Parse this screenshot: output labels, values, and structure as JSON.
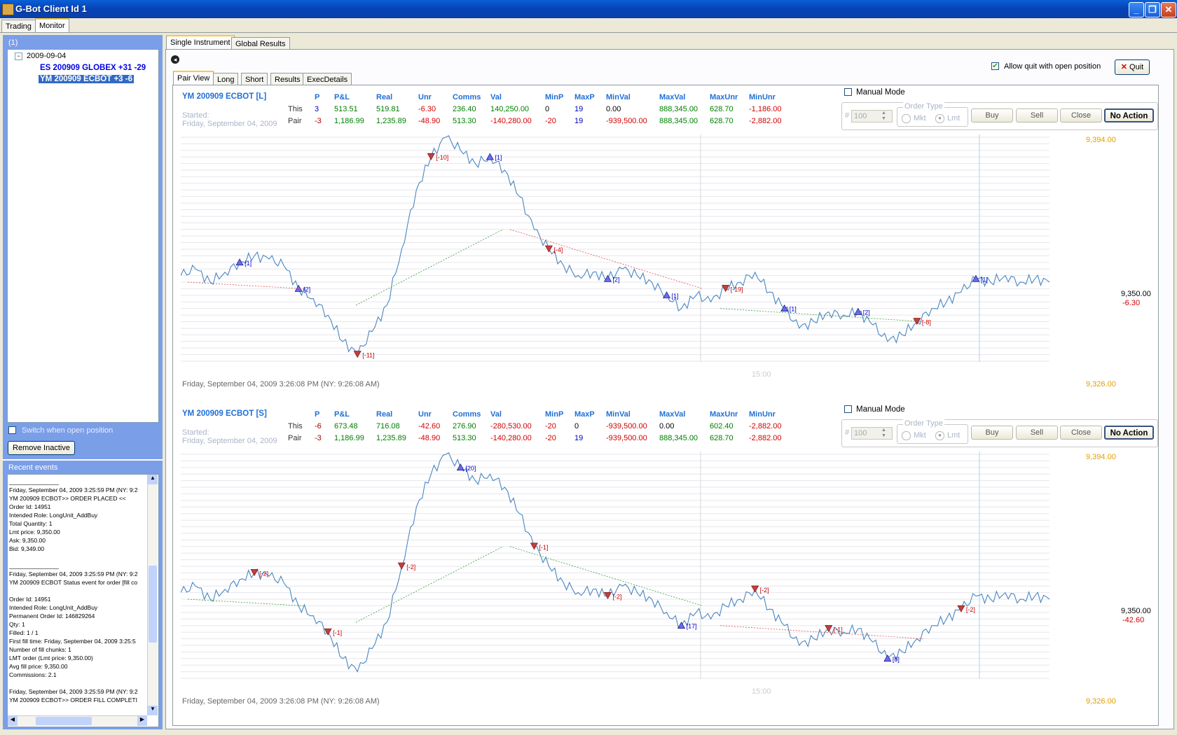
{
  "window": {
    "title": "G-Bot Client Id 1"
  },
  "main_tabs": [
    "Trading",
    "Monitor"
  ],
  "left": {
    "header": "(1)",
    "tree": {
      "date": "2009-09-04",
      "items": [
        "ES 200909 GLOBEX +31 -29",
        "YM 200909 ECBOT +3 -6"
      ]
    },
    "switch_label": "Switch when open position",
    "remove_inactive": "Remove Inactive",
    "events_header": "Recent events",
    "events_text": "_______________\nFriday, September 04, 2009 3:25:59 PM (NY: 9:2\nYM 200909 ECBOT>> ORDER PLACED <<\nOrder Id: 14951\nIntended Role: LongUnit_AddBuy\nTotal Quantity: 1\nLmt price: 9,350.00\nAsk: 9,350.00\nBid: 9,349.00\n\n_______________\nFriday, September 04, 2009 3:25:59 PM (NY: 9:2\nYM 200909 ECBOT Status event for order [fill co\n\nOrder Id: 14951\nIntended Role: LongUnit_AddBuy\nPermanent Order Id: 146829264\nQty: 1\nFilled: 1 / 1\nFirst fill time: Friday, September 04, 2009 3:25:5\nNumber of fill chunks: 1\nLMT order (Lmt price: 9,350.00)\nAvg fill price: 9,350.00\nCommissions: 2.1\n\nFriday, September 04, 2009 3:25:59 PM (NY: 9:2\nYM 200909 ECBOT>> ORDER FILL COMPLETI"
  },
  "right": {
    "tabs": [
      "Single Instrument",
      "Global Results"
    ],
    "subtabs": [
      "Pair View",
      "Long",
      "Short",
      "Results",
      "ExecDetails"
    ],
    "allow_quit": "Allow quit with open position",
    "quit": "Quit",
    "columns": [
      "P",
      "P&L",
      "Real",
      "Unr",
      "Comms",
      "Val",
      "MinP",
      "MaxP",
      "MinVal",
      "MaxVal",
      "MaxUnr",
      "MinUnr"
    ],
    "panels": [
      {
        "title": "YM 200909 ECBOT [L]",
        "started": "Started:",
        "started_date": "Friday, September 04, 2009",
        "rows": [
          {
            "label": "This",
            "values": [
              "3",
              "513.51",
              "519.81",
              "-6.30",
              "236.40",
              "140,250.00",
              "0",
              "19",
              "0.00",
              "888,345.00",
              "628.70",
              "-1,186.00"
            ]
          },
          {
            "label": "Pair",
            "values": [
              "-3",
              "1,186.99",
              "1,235.89",
              "-48.90",
              "513.30",
              "-140,280.00",
              "-20",
              "19",
              "-939,500.00",
              "888,345.00",
              "628.70",
              "-2,882.00"
            ]
          }
        ],
        "manual_mode": "Manual Mode",
        "qty_label": "#",
        "qty": "100",
        "order_type": "Order Type",
        "mkt": "Mkt",
        "lmt": "Lmt",
        "buttons": [
          "Buy",
          "Sell",
          "Close",
          "No Action"
        ],
        "price_top": "9,394.00",
        "price_bottom": "9,326.00",
        "last_price": "9,350.00",
        "last_unr": "-6.30",
        "time_marker": "15:00",
        "footer": "Friday, September 04, 2009 3:26:08 PM (NY: 9:26:08 AM)"
      },
      {
        "title": "YM 200909 ECBOT [S]",
        "started": "Started:",
        "started_date": "Friday, September 04, 2009",
        "rows": [
          {
            "label": "This",
            "values": [
              "-6",
              "673.48",
              "716.08",
              "-42.60",
              "276.90",
              "-280,530.00",
              "-20",
              "0",
              "-939,500.00",
              "0.00",
              "602.40",
              "-2,882.00"
            ]
          },
          {
            "label": "Pair",
            "values": [
              "-3",
              "1,186.99",
              "1,235.89",
              "-48.90",
              "513.30",
              "-140,280.00",
              "-20",
              "19",
              "-939,500.00",
              "888,345.00",
              "628.70",
              "-2,882.00"
            ]
          }
        ],
        "manual_mode": "Manual Mode",
        "qty_label": "#",
        "qty": "100",
        "order_type": "Order Type",
        "mkt": "Mkt",
        "lmt": "Lmt",
        "buttons": [
          "Buy",
          "Sell",
          "Close",
          "No Action"
        ],
        "price_top": "9,394.00",
        "price_bottom": "9,326.00",
        "last_price": "9,350.00",
        "last_unr": "-42.60",
        "time_marker": "15:00",
        "footer": "Friday, September 04, 2009 3:26:08 PM (NY: 9:26:08 AM)"
      }
    ]
  },
  "chart_data": [
    {
      "type": "line",
      "ylim": [
        9326,
        9394
      ],
      "series": [
        {
          "values": [
            9352,
            9354,
            9350,
            9353,
            9356,
            9358,
            9357,
            9355,
            9348,
            9345,
            9340,
            9332,
            9328,
            9335,
            9343,
            9360,
            9378,
            9388,
            9394,
            9390,
            9386,
            9388,
            9384,
            9376,
            9366,
            9360,
            9355,
            9352,
            9353,
            9351,
            9354,
            9352,
            9350,
            9346,
            9342,
            9346,
            9344,
            9348,
            9350,
            9353,
            9347,
            9342,
            9336,
            9338,
            9341,
            9340,
            9341,
            9337,
            9332,
            9334,
            9338,
            9342,
            9344,
            9347,
            9351,
            9350,
            9352,
            9350,
            9351,
            9350
          ]
        }
      ],
      "trade_labels": [
        "[1]",
        "[2]",
        "[-11]",
        "[-10]",
        "[1]",
        "[-4]",
        "[2]",
        "[1]",
        "[-19]",
        "[1]",
        "[2]",
        "[-8]",
        "[1]"
      ]
    },
    {
      "type": "line",
      "ylim": [
        9326,
        9394
      ],
      "series": [
        {
          "values": [
            9352,
            9354,
            9350,
            9353,
            9356,
            9358,
            9357,
            9355,
            9348,
            9345,
            9340,
            9332,
            9328,
            9335,
            9343,
            9360,
            9378,
            9388,
            9394,
            9390,
            9386,
            9388,
            9384,
            9376,
            9366,
            9360,
            9355,
            9352,
            9353,
            9351,
            9354,
            9352,
            9350,
            9346,
            9342,
            9346,
            9344,
            9348,
            9350,
            9353,
            9347,
            9342,
            9336,
            9338,
            9341,
            9340,
            9341,
            9337,
            9332,
            9334,
            9338,
            9342,
            9344,
            9347,
            9351,
            9350,
            9352,
            9350,
            9351,
            9350
          ]
        }
      ],
      "trade_labels": [
        "[-2]",
        "[-1]",
        "[-2]",
        "[20]",
        "[-1]",
        "[-2]",
        "[17]",
        "[-2]",
        "[-1]",
        "[8]",
        "[-2]"
      ]
    }
  ]
}
